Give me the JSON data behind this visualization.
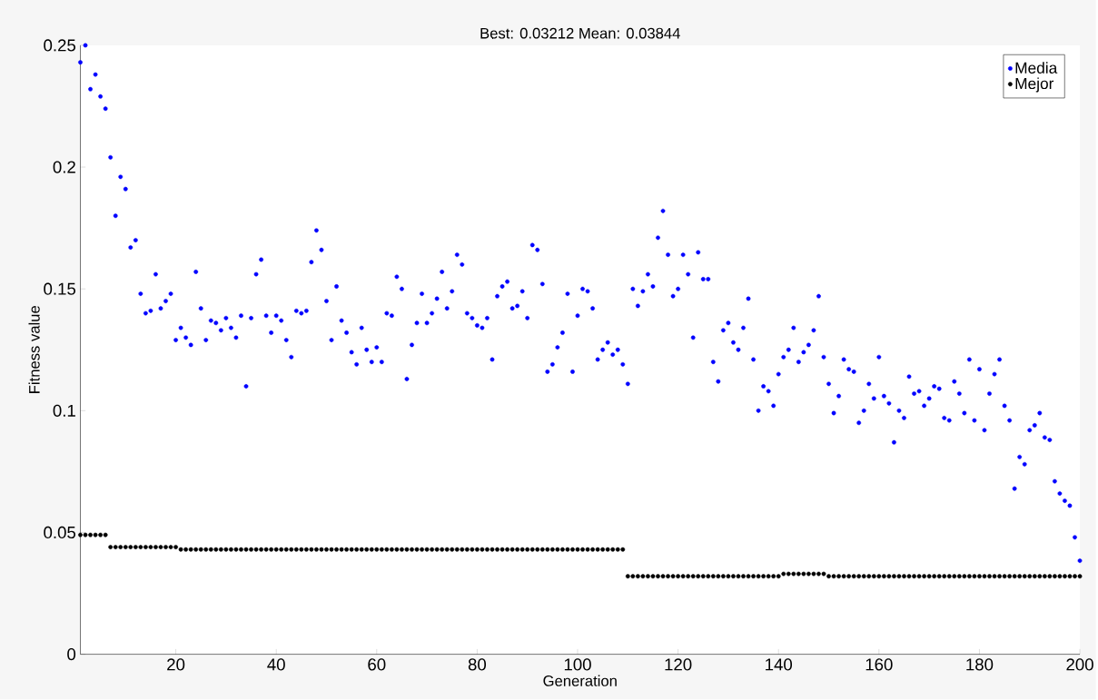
{
  "chart_data": {
    "type": "scatter",
    "title": "Best: 0.03212 Mean: 0.03844",
    "xlabel": "Generation",
    "ylabel": "Fitness value",
    "xlim": [
      1,
      200
    ],
    "ylim": [
      0,
      0.25
    ],
    "xticks": [
      20,
      40,
      60,
      80,
      100,
      120,
      140,
      160,
      180,
      200
    ],
    "yticks": [
      0,
      0.05,
      0.1,
      0.15,
      0.2,
      0.25
    ],
    "grid": false,
    "legend": "top right",
    "marker": "circle",
    "x": [
      1,
      2,
      3,
      4,
      5,
      6,
      7,
      8,
      9,
      10,
      11,
      12,
      13,
      14,
      15,
      16,
      17,
      18,
      19,
      20,
      21,
      22,
      23,
      24,
      25,
      26,
      27,
      28,
      29,
      30,
      31,
      32,
      33,
      34,
      35,
      36,
      37,
      38,
      39,
      40,
      41,
      42,
      43,
      44,
      45,
      46,
      47,
      48,
      49,
      50,
      51,
      52,
      53,
      54,
      55,
      56,
      57,
      58,
      59,
      60,
      61,
      62,
      63,
      64,
      65,
      66,
      67,
      68,
      69,
      70,
      71,
      72,
      73,
      74,
      75,
      76,
      77,
      78,
      79,
      80,
      81,
      82,
      83,
      84,
      85,
      86,
      87,
      88,
      89,
      90,
      91,
      92,
      93,
      94,
      95,
      96,
      97,
      98,
      99,
      100,
      101,
      102,
      103,
      104,
      105,
      106,
      107,
      108,
      109,
      110,
      111,
      112,
      113,
      114,
      115,
      116,
      117,
      118,
      119,
      120,
      121,
      122,
      123,
      124,
      125,
      126,
      127,
      128,
      129,
      130,
      131,
      132,
      133,
      134,
      135,
      136,
      137,
      138,
      139,
      140,
      141,
      142,
      143,
      144,
      145,
      146,
      147,
      148,
      149,
      150,
      151,
      152,
      153,
      154,
      155,
      156,
      157,
      158,
      159,
      160,
      161,
      162,
      163,
      164,
      165,
      166,
      167,
      168,
      169,
      170,
      171,
      172,
      173,
      174,
      175,
      176,
      177,
      178,
      179,
      180,
      181,
      182,
      183,
      184,
      185,
      186,
      187,
      188,
      189,
      190,
      191,
      192,
      193,
      194,
      195,
      196,
      197,
      198,
      199,
      200
    ],
    "series": [
      {
        "name": "Media",
        "color": "#0000ff",
        "values": [
          0.243,
          0.25,
          0.232,
          0.238,
          0.229,
          0.224,
          0.204,
          0.18,
          0.196,
          0.191,
          0.167,
          0.17,
          0.148,
          0.14,
          0.141,
          0.156,
          0.142,
          0.145,
          0.148,
          0.129,
          0.134,
          0.13,
          0.127,
          0.157,
          0.142,
          0.129,
          0.137,
          0.136,
          0.133,
          0.138,
          0.134,
          0.13,
          0.139,
          0.11,
          0.138,
          0.156,
          0.162,
          0.139,
          0.132,
          0.139,
          0.137,
          0.129,
          0.122,
          0.141,
          0.14,
          0.141,
          0.161,
          0.174,
          0.166,
          0.145,
          0.129,
          0.151,
          0.137,
          0.132,
          0.124,
          0.119,
          0.134,
          0.125,
          0.12,
          0.126,
          0.12,
          0.14,
          0.139,
          0.155,
          0.15,
          0.113,
          0.127,
          0.136,
          0.148,
          0.136,
          0.14,
          0.146,
          0.157,
          0.142,
          0.149,
          0.164,
          0.16,
          0.14,
          0.138,
          0.135,
          0.134,
          0.138,
          0.121,
          0.147,
          0.151,
          0.153,
          0.142,
          0.143,
          0.149,
          0.138,
          0.168,
          0.166,
          0.152,
          0.116,
          0.119,
          0.126,
          0.132,
          0.148,
          0.116,
          0.139,
          0.15,
          0.149,
          0.142,
          0.121,
          0.125,
          0.128,
          0.123,
          0.125,
          0.119,
          0.111,
          0.15,
          0.143,
          0.149,
          0.156,
          0.151,
          0.171,
          0.182,
          0.164,
          0.147,
          0.15,
          0.164,
          0.156,
          0.13,
          0.165,
          0.154,
          0.154,
          0.12,
          0.112,
          0.133,
          0.136,
          0.128,
          0.125,
          0.134,
          0.146,
          0.121,
          0.1,
          0.11,
          0.108,
          0.102,
          0.115,
          0.122,
          0.125,
          0.134,
          0.12,
          0.124,
          0.127,
          0.133,
          0.147,
          0.122,
          0.111,
          0.099,
          0.106,
          0.121,
          0.117,
          0.116,
          0.095,
          0.1,
          0.111,
          0.105,
          0.122,
          0.106,
          0.103,
          0.087,
          0.1,
          0.097,
          0.114,
          0.107,
          0.108,
          0.102,
          0.105,
          0.11,
          0.109,
          0.097,
          0.096,
          0.112,
          0.107,
          0.099,
          0.121,
          0.096,
          0.117,
          0.092,
          0.107,
          0.115,
          0.121,
          0.102,
          0.096,
          0.068,
          0.081,
          0.078,
          0.092,
          0.094,
          0.099,
          0.089,
          0.088,
          0.071,
          0.066,
          0.063,
          0.061,
          0.048,
          0.0384
        ]
      },
      {
        "name": "Mejor",
        "color": "#000000",
        "values": [
          0.049,
          0.049,
          0.049,
          0.049,
          0.049,
          0.049,
          0.044,
          0.044,
          0.044,
          0.044,
          0.044,
          0.044,
          0.044,
          0.044,
          0.044,
          0.044,
          0.044,
          0.044,
          0.044,
          0.044,
          0.043,
          0.043,
          0.043,
          0.043,
          0.043,
          0.043,
          0.043,
          0.043,
          0.043,
          0.043,
          0.043,
          0.043,
          0.043,
          0.043,
          0.043,
          0.043,
          0.043,
          0.043,
          0.043,
          0.043,
          0.043,
          0.043,
          0.043,
          0.043,
          0.043,
          0.043,
          0.043,
          0.043,
          0.043,
          0.043,
          0.043,
          0.043,
          0.043,
          0.043,
          0.043,
          0.043,
          0.043,
          0.043,
          0.043,
          0.043,
          0.043,
          0.043,
          0.043,
          0.043,
          0.043,
          0.043,
          0.043,
          0.043,
          0.043,
          0.043,
          0.043,
          0.043,
          0.043,
          0.043,
          0.043,
          0.043,
          0.043,
          0.043,
          0.043,
          0.043,
          0.043,
          0.043,
          0.043,
          0.043,
          0.043,
          0.043,
          0.043,
          0.043,
          0.043,
          0.043,
          0.043,
          0.043,
          0.043,
          0.043,
          0.043,
          0.043,
          0.043,
          0.043,
          0.043,
          0.043,
          0.043,
          0.043,
          0.043,
          0.043,
          0.043,
          0.043,
          0.043,
          0.043,
          0.043,
          0.032,
          0.032,
          0.032,
          0.032,
          0.032,
          0.032,
          0.032,
          0.032,
          0.032,
          0.032,
          0.032,
          0.032,
          0.032,
          0.032,
          0.032,
          0.032,
          0.032,
          0.032,
          0.032,
          0.032,
          0.032,
          0.032,
          0.032,
          0.032,
          0.032,
          0.032,
          0.032,
          0.032,
          0.032,
          0.032,
          0.032,
          0.033,
          0.033,
          0.033,
          0.033,
          0.033,
          0.033,
          0.033,
          0.033,
          0.033,
          0.032,
          0.032,
          0.032,
          0.032,
          0.032,
          0.032,
          0.032,
          0.032,
          0.032,
          0.032,
          0.032,
          0.032,
          0.032,
          0.032,
          0.032,
          0.032,
          0.032,
          0.032,
          0.032,
          0.032,
          0.032,
          0.032,
          0.032,
          0.032,
          0.032,
          0.032,
          0.032,
          0.032,
          0.032,
          0.032,
          0.032,
          0.032,
          0.032,
          0.032,
          0.032,
          0.032,
          0.032,
          0.032,
          0.032,
          0.032,
          0.032,
          0.032,
          0.032,
          0.032,
          0.032,
          0.032,
          0.032,
          0.032,
          0.032,
          0.032,
          0.032
        ]
      }
    ]
  }
}
